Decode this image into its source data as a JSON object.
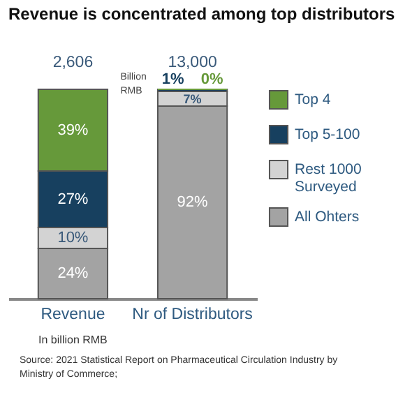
{
  "chart_data": {
    "type": "bar",
    "title": "Revenue is concentrated among top distributors",
    "categories": [
      "Revenue",
      "Nr of Distributors"
    ],
    "stacked": true,
    "series": [
      {
        "name": "All Ohters",
        "color": "#a3a3a3",
        "values": [
          24,
          92
        ],
        "value_labels": [
          "24%",
          "92%"
        ]
      },
      {
        "name": "Rest 1000 Surveyed",
        "color": "#d3d3d3",
        "values": [
          10,
          7
        ],
        "value_labels": [
          "10%",
          "7%"
        ]
      },
      {
        "name": "Top 5-100",
        "color": "#17405f",
        "values": [
          27,
          1
        ],
        "value_labels": [
          "27%",
          "1%"
        ]
      },
      {
        "name": "Top 4",
        "color": "#66993a",
        "values": [
          39,
          0
        ],
        "value_labels": [
          "39%",
          "0%"
        ]
      }
    ],
    "legend": "right",
    "annotations": [
      "2,606",
      "Billion RMB",
      "13,000",
      "In billion RMB",
      "Source: 2021 Statistical Report on Pharmaceutical Circulation Industry by Ministry of Commerce;"
    ]
  }
}
